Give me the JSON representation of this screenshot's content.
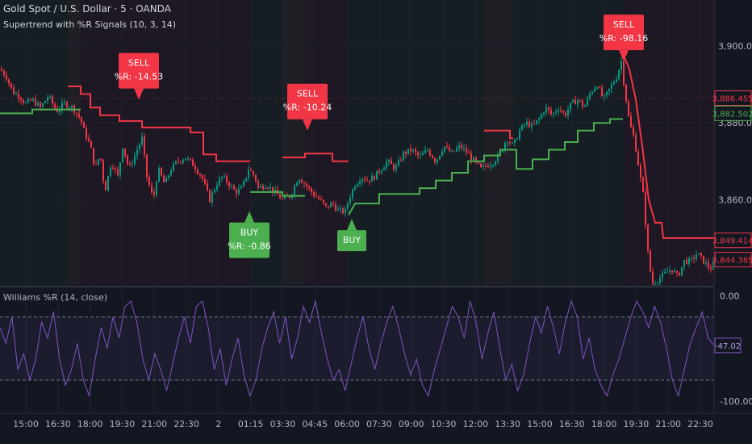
{
  "header": {
    "symbol": "Gold Spot / U.S. Dollar · 5 · OANDA",
    "indicator": "Supertrend with %R Signals (10, 3, 14)",
    "sub_indicator": "Williams %R (14, close)"
  },
  "colors": {
    "background": "#131722",
    "bull": "#4caf50",
    "bear": "#f23645",
    "wr_line": "#7e57c2",
    "grid": "#1e222d",
    "text": "#b2b5be"
  },
  "chart_data": [
    {
      "type": "candlestick",
      "title": "",
      "x_ticks": [
        "15:00",
        "16:30",
        "18:00",
        "19:30",
        "21:00",
        "22:30",
        "2",
        "01:15",
        "03:30",
        "04:45",
        "06:00",
        "07:30",
        "09:00",
        "10:30",
        "12:00",
        "13:30",
        "15:00",
        "16:30",
        "18:00",
        "19:30",
        "21:00",
        "22:30"
      ],
      "y_ticks": [
        "3,900.000",
        "3,880.000",
        "3,860.000"
      ],
      "ylim": [
        3838,
        3912
      ],
      "price_labels": [
        {
          "text": "3,886.455",
          "value": 3886.455,
          "color": "#f23645"
        },
        {
          "text": "3,882.502",
          "value": 3882.502,
          "color": "#4caf50"
        },
        {
          "text": "3,849.414",
          "value": 3849.414,
          "color": "#f23645"
        },
        {
          "text": "3,844.385",
          "value": 3844.385,
          "color": "#f23645"
        }
      ],
      "price_path": [
        [
          0,
          3894
        ],
        [
          8,
          3892
        ],
        [
          16,
          3888
        ],
        [
          24,
          3887
        ],
        [
          32,
          3885
        ],
        [
          40,
          3886
        ],
        [
          50,
          3884
        ],
        [
          60,
          3887
        ],
        [
          70,
          3883
        ],
        [
          80,
          3885
        ],
        [
          90,
          3884
        ],
        [
          100,
          3881
        ],
        [
          104,
          3878
        ],
        [
          112,
          3874
        ],
        [
          118,
          3868
        ],
        [
          124,
          3872
        ],
        [
          130,
          3862
        ],
        [
          138,
          3870
        ],
        [
          146,
          3866
        ],
        [
          152,
          3874
        ],
        [
          160,
          3868
        ],
        [
          168,
          3872
        ],
        [
          176,
          3876
        ],
        [
          182,
          3866
        ],
        [
          190,
          3860
        ],
        [
          196,
          3868
        ],
        [
          204,
          3864
        ],
        [
          212,
          3868
        ],
        [
          220,
          3870
        ],
        [
          230,
          3871
        ],
        [
          240,
          3869
        ],
        [
          250,
          3866
        ],
        [
          260,
          3860
        ],
        [
          268,
          3864
        ],
        [
          276,
          3866
        ],
        [
          284,
          3864
        ],
        [
          292,
          3862
        ],
        [
          300,
          3863
        ],
        [
          308,
          3868
        ],
        [
          316,
          3866
        ],
        [
          320,
          3863
        ],
        [
          330,
          3864
        ],
        [
          340,
          3862
        ],
        [
          350,
          3860
        ],
        [
          360,
          3861
        ],
        [
          370,
          3866
        ],
        [
          378,
          3864
        ],
        [
          386,
          3862
        ],
        [
          396,
          3860
        ],
        [
          404,
          3858
        ],
        [
          412,
          3859
        ],
        [
          420,
          3857
        ],
        [
          428,
          3857
        ],
        [
          432,
          3860
        ],
        [
          440,
          3864
        ],
        [
          448,
          3866
        ],
        [
          456,
          3865
        ],
        [
          464,
          3866
        ],
        [
          472,
          3868
        ],
        [
          480,
          3870
        ],
        [
          490,
          3868
        ],
        [
          500,
          3872
        ],
        [
          510,
          3873
        ],
        [
          520,
          3871
        ],
        [
          530,
          3873
        ],
        [
          540,
          3870
        ],
        [
          550,
          3874
        ],
        [
          560,
          3872
        ],
        [
          570,
          3874
        ],
        [
          580,
          3872
        ],
        [
          588,
          3870
        ],
        [
          596,
          3868
        ],
        [
          604,
          3869
        ],
        [
          612,
          3870
        ],
        [
          620,
          3872
        ],
        [
          628,
          3876
        ],
        [
          636,
          3874
        ],
        [
          644,
          3878
        ],
        [
          652,
          3880
        ],
        [
          660,
          3879
        ],
        [
          668,
          3881
        ],
        [
          676,
          3884
        ],
        [
          684,
          3882
        ],
        [
          692,
          3884
        ],
        [
          700,
          3882
        ],
        [
          708,
          3885
        ],
        [
          716,
          3886
        ],
        [
          724,
          3884
        ],
        [
          732,
          3888
        ],
        [
          740,
          3890
        ],
        [
          748,
          3886
        ],
        [
          756,
          3889
        ],
        [
          764,
          3892
        ],
        [
          770,
          3896
        ],
        [
          774,
          3889
        ],
        [
          780,
          3880
        ],
        [
          786,
          3876
        ],
        [
          792,
          3868
        ],
        [
          798,
          3860
        ],
        [
          802,
          3848
        ],
        [
          808,
          3838
        ],
        [
          820,
          3840
        ],
        [
          832,
          3842
        ],
        [
          840,
          3840
        ],
        [
          848,
          3844
        ],
        [
          856,
          3844
        ],
        [
          864,
          3846
        ],
        [
          872,
          3844
        ],
        [
          880,
          3842
        ],
        [
          888,
          3844
        ]
      ],
      "supertrend": [
        {
          "trend": "up",
          "points": [
            [
              0,
              3882.5
            ],
            [
              40,
              3882.5
            ],
            [
              40,
              3883.5
            ],
            [
              100,
              3883.5
            ]
          ]
        },
        {
          "trend": "down",
          "points": [
            [
              84,
              3889.5
            ],
            [
              100,
              3889.5
            ],
            [
              100,
              3887.5
            ],
            [
              112,
              3887.5
            ],
            [
              112,
              3884
            ],
            [
              124,
              3884
            ],
            [
              124,
              3882
            ],
            [
              148,
              3882
            ],
            [
              148,
              3880.5
            ],
            [
              176,
              3880.5
            ],
            [
              176,
              3878.8
            ],
            [
              236,
              3878.8
            ],
            [
              236,
              3877.5
            ],
            [
              252,
              3877.5
            ],
            [
              252,
              3871.8
            ],
            [
              268,
              3871.8
            ],
            [
              268,
              3870
            ],
            [
              310,
              3870
            ]
          ]
        },
        {
          "trend": "up",
          "points": [
            [
              310,
              3862
            ],
            [
              350,
              3862
            ],
            [
              350,
              3861
            ],
            [
              378,
              3861
            ]
          ]
        },
        {
          "trend": "down",
          "points": [
            [
              350,
              3871
            ],
            [
              378,
              3871
            ],
            [
              378,
              3872
            ],
            [
              412,
              3872
            ],
            [
              412,
              3870
            ],
            [
              432,
              3870
            ]
          ]
        },
        {
          "trend": "up",
          "points": [
            [
              432,
              3856
            ],
            [
              440,
              3859
            ],
            [
              470,
              3859
            ],
            [
              470,
              3861.5
            ],
            [
              520,
              3861.5
            ],
            [
              520,
              3863
            ],
            [
              540,
              3863
            ],
            [
              540,
              3865
            ],
            [
              560,
              3865
            ],
            [
              560,
              3867
            ],
            [
              580,
              3867
            ],
            [
              580,
              3870
            ],
            [
              600,
              3870
            ],
            [
              600,
              3871.5
            ],
            [
              620,
              3871.5
            ],
            [
              620,
              3873
            ],
            [
              640,
              3873
            ],
            [
              640,
              3868
            ],
            [
              660,
              3868
            ],
            [
              660,
              3870.5
            ],
            [
              680,
              3870.5
            ],
            [
              680,
              3873
            ],
            [
              700,
              3873
            ],
            [
              700,
              3875
            ],
            [
              716,
              3875
            ],
            [
              716,
              3878
            ],
            [
              736,
              3878
            ],
            [
              736,
              3880
            ],
            [
              756,
              3880
            ],
            [
              756,
              3881
            ],
            [
              772,
              3881
            ]
          ]
        },
        {
          "trend": "down",
          "points": [
            [
              600,
              3878
            ],
            [
              632,
              3878
            ],
            [
              632,
              3876
            ],
            [
              636,
              3876
            ]
          ]
        },
        {
          "trend": "down",
          "points": [
            [
              772,
              3898
            ],
            [
              780,
              3894
            ],
            [
              788,
              3886
            ],
            [
              796,
              3874
            ],
            [
              804,
              3860
            ],
            [
              812,
              3854
            ],
            [
              820,
              3854
            ],
            [
              822,
              3850
            ],
            [
              888,
              3850
            ]
          ]
        }
      ],
      "signals": [
        {
          "type": "SELL",
          "line1": "SELL",
          "line2": "%R: -14.53",
          "x": 172,
          "y": 3886
        },
        {
          "type": "SELL",
          "line1": "SELL",
          "line2": "%R: -10.24",
          "x": 381,
          "y": 3878
        },
        {
          "type": "SELL",
          "line1": "SELL",
          "line2": "%R: -98.16",
          "x": 773,
          "y": 3896
        },
        {
          "type": "BUY",
          "line1": "BUY",
          "line2": "%R: -0.86",
          "x": 309,
          "y": 3857
        },
        {
          "type": "BUY",
          "line1": "BUY",
          "line2": "",
          "x": 436,
          "y": 3855
        }
      ]
    },
    {
      "type": "line",
      "title": "",
      "series": [
        {
          "name": "",
          "values": [
            -30,
            -45,
            -20,
            -70,
            -55,
            -80,
            -60,
            -25,
            -40,
            -15,
            -60,
            -85,
            -70,
            -45,
            -80,
            -95,
            -60,
            -30,
            -50,
            -20,
            -40,
            -10,
            -5,
            -25,
            -60,
            -80,
            -55,
            -70,
            -90,
            -65,
            -40,
            -20,
            -45,
            -10,
            -5,
            -30,
            -70,
            -50,
            -85,
            -60,
            -40,
            -75,
            -95,
            -80,
            -50,
            -30,
            -15,
            -45,
            -20,
            -60,
            -40,
            -10,
            -25,
            -5,
            -35,
            -60,
            -80,
            -70,
            -90,
            -65,
            -40,
            -20,
            -50,
            -70,
            -45,
            -25,
            -10,
            -30,
            -55,
            -75,
            -60,
            -85,
            -95,
            -70,
            -50,
            -30,
            -10,
            -20,
            -40,
            -5,
            -25,
            -60,
            -35,
            -15,
            -50,
            -80,
            -65,
            -90,
            -75,
            -45,
            -20,
            -35,
            -10,
            -30,
            -55,
            -25,
            -5,
            -20,
            -60,
            -40,
            -70,
            -85,
            -95,
            -75,
            -60,
            -40,
            -20,
            -5,
            -15,
            -30,
            -10,
            -25,
            -50,
            -80,
            -95,
            -70,
            -45,
            -30,
            -15,
            -40,
            -47
          ]
        }
      ],
      "ylim": [
        -110,
        5
      ],
      "y_ticks": [
        "0.00",
        "-100.00"
      ],
      "levels": [
        -20,
        -80
      ],
      "current_label": "-47.02",
      "current_value": -47.02
    }
  ]
}
